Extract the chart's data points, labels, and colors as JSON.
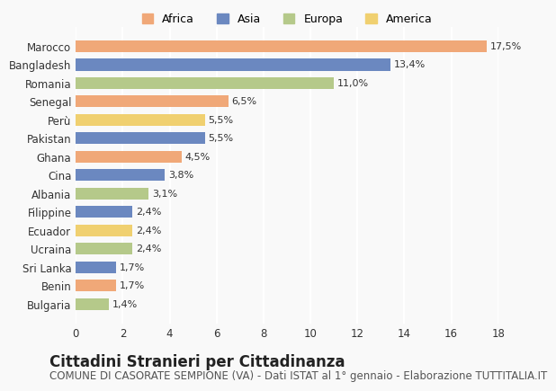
{
  "countries": [
    "Marocco",
    "Bangladesh",
    "Romania",
    "Senegal",
    "Perù",
    "Pakistan",
    "Ghana",
    "Cina",
    "Albania",
    "Filippine",
    "Ecuador",
    "Ucraina",
    "Sri Lanka",
    "Benin",
    "Bulgaria"
  ],
  "values": [
    17.5,
    13.4,
    11.0,
    6.5,
    5.5,
    5.5,
    4.5,
    3.8,
    3.1,
    2.4,
    2.4,
    2.4,
    1.7,
    1.7,
    1.4
  ],
  "labels": [
    "17,5%",
    "13,4%",
    "11,0%",
    "6,5%",
    "5,5%",
    "5,5%",
    "4,5%",
    "3,8%",
    "3,1%",
    "2,4%",
    "2,4%",
    "2,4%",
    "1,7%",
    "1,7%",
    "1,4%"
  ],
  "continents": [
    "Africa",
    "Asia",
    "Europa",
    "Africa",
    "America",
    "Asia",
    "Africa",
    "Asia",
    "Europa",
    "Asia",
    "America",
    "Europa",
    "Asia",
    "Africa",
    "Europa"
  ],
  "continent_colors": {
    "Africa": "#F0A878",
    "Asia": "#6B88C0",
    "Europa": "#B5C98A",
    "America": "#F0D070"
  },
  "legend_order": [
    "Africa",
    "Asia",
    "Europa",
    "America"
  ],
  "title": "Cittadini Stranieri per Cittadinanza",
  "subtitle": "COMUNE DI CASORATE SEMPIONE (VA) - Dati ISTAT al 1° gennaio - Elaborazione TUTTITALIA.IT",
  "xlim": [
    0,
    18
  ],
  "xticks": [
    0,
    2,
    4,
    6,
    8,
    10,
    12,
    14,
    16,
    18
  ],
  "background_color": "#f9f9f9",
  "grid_color": "#ffffff",
  "bar_height": 0.65,
  "title_fontsize": 12,
  "subtitle_fontsize": 8.5,
  "label_fontsize": 8,
  "tick_fontsize": 8.5,
  "legend_fontsize": 9
}
